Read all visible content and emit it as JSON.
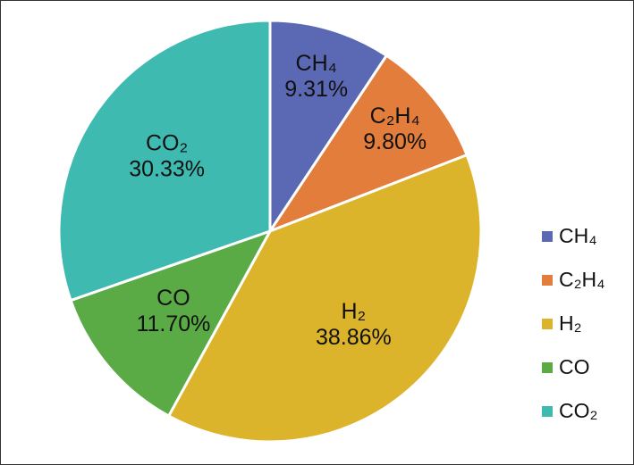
{
  "chart_data": {
    "type": "pie",
    "categories": [
      "CH₄",
      "C₂H₄",
      "H₂",
      "CO",
      "CO₂"
    ],
    "values": [
      9.31,
      9.8,
      38.86,
      11.7,
      30.33
    ],
    "value_labels": [
      "9.31%",
      "9.80%",
      "38.86%",
      "11.70%",
      "30.33%"
    ],
    "colors": [
      "#5b69b4",
      "#e27d3b",
      "#dcb42c",
      "#5aab46",
      "#3fbab1"
    ],
    "legend": "right"
  }
}
